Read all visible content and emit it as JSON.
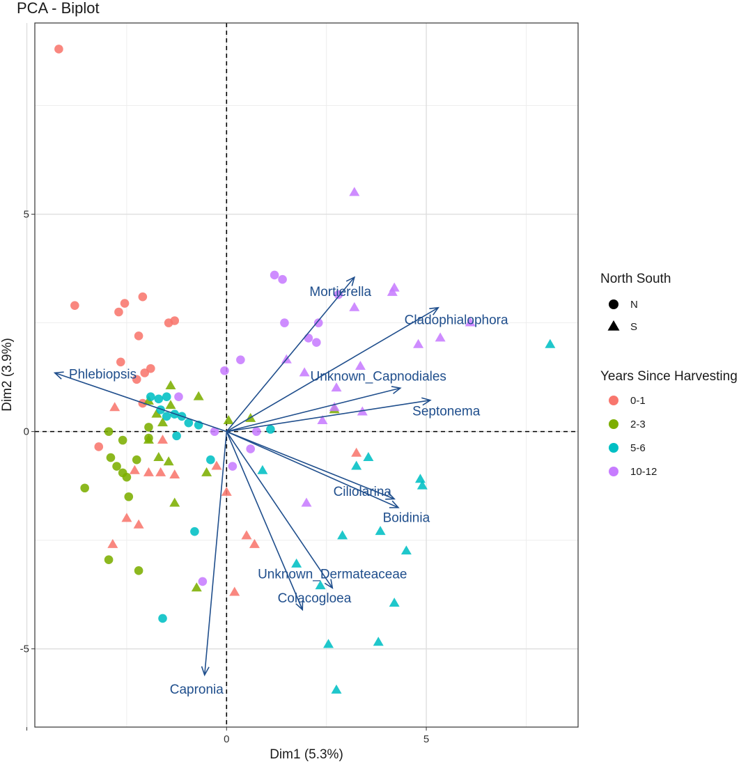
{
  "chart_data": {
    "type": "scatter",
    "title": "PCA - Biplot",
    "xlabel": "Dim1 (5.3%)",
    "ylabel": "Dim2 (3.9%)",
    "xlim": [
      -4.8,
      8.8
    ],
    "ylim": [
      -6.8,
      9.4
    ],
    "xticks": [
      {
        "value": -5,
        "label": ""
      },
      {
        "value": 0,
        "label": "0"
      },
      {
        "value": 5,
        "label": "5"
      }
    ],
    "yticks": [
      {
        "value": -5,
        "label": "-5"
      },
      {
        "value": 0,
        "label": "0"
      },
      {
        "value": 5,
        "label": "5"
      }
    ],
    "minor_x": [
      -2.5,
      2.5,
      7.5
    ],
    "minor_y": [
      -2.5,
      2.5,
      7.5
    ],
    "grid": true,
    "zero_lines": "dashed",
    "arrow_color": "#1F4E8C",
    "arrows": [
      {
        "label": "Mortierella",
        "x": 3.2,
        "y": 3.55,
        "lx": 2.85,
        "ly": 3.2
      },
      {
        "label": "Cladophialophora",
        "x": 5.3,
        "y": 2.85,
        "lx": 5.75,
        "ly": 2.55
      },
      {
        "label": "Phlebiopsis",
        "x": -4.3,
        "y": 1.35,
        "lx": -3.1,
        "ly": 1.3
      },
      {
        "label": "Unknown_Capnodiales",
        "x": 4.35,
        "y": 1.0,
        "lx": 3.8,
        "ly": 1.25
      },
      {
        "label": "Septonema",
        "x": 5.1,
        "y": 0.72,
        "lx": 5.5,
        "ly": 0.45
      },
      {
        "label": "Ciliolarina",
        "x": 4.2,
        "y": -1.55,
        "lx": 3.4,
        "ly": -1.4
      },
      {
        "label": "Boidinia",
        "x": 4.3,
        "y": -1.75,
        "lx": 4.5,
        "ly": -2.0
      },
      {
        "label": "Unknown_Dermateaceae",
        "x": 2.65,
        "y": -3.6,
        "lx": 2.65,
        "ly": -3.3
      },
      {
        "label": "Colacogloea",
        "x": 1.9,
        "y": -4.1,
        "lx": 2.2,
        "ly": -3.85
      },
      {
        "label": "Capronia",
        "x": -0.55,
        "y": -5.6,
        "lx": -0.75,
        "ly": -5.95
      }
    ],
    "legend": {
      "position": "right",
      "shape_title": "North South",
      "shapes": [
        {
          "key": "N",
          "label": "N"
        },
        {
          "key": "S",
          "label": "S"
        }
      ],
      "color_title": "Years Since Harvesting",
      "groups": [
        {
          "key": "g01",
          "label": "0-1",
          "color": "#F8766D"
        },
        {
          "key": "g23",
          "label": "2-3",
          "color": "#7CAE00"
        },
        {
          "key": "g56",
          "label": "5-6",
          "color": "#00BFC4"
        },
        {
          "key": "g1012",
          "label": "10-12",
          "color": "#C77CFF"
        }
      ]
    },
    "points": [
      {
        "x": -4.2,
        "y": 8.8,
        "shape": "N",
        "group": "g01"
      },
      {
        "x": -3.8,
        "y": 2.9,
        "shape": "N",
        "group": "g01"
      },
      {
        "x": -2.7,
        "y": 2.75,
        "shape": "N",
        "group": "g01"
      },
      {
        "x": -2.55,
        "y": 2.95,
        "shape": "N",
        "group": "g01"
      },
      {
        "x": -2.1,
        "y": 3.1,
        "shape": "N",
        "group": "g01"
      },
      {
        "x": -2.2,
        "y": 2.2,
        "shape": "N",
        "group": "g01"
      },
      {
        "x": -1.45,
        "y": 2.5,
        "shape": "N",
        "group": "g01"
      },
      {
        "x": -1.3,
        "y": 2.55,
        "shape": "N",
        "group": "g01"
      },
      {
        "x": -2.65,
        "y": 1.6,
        "shape": "N",
        "group": "g01"
      },
      {
        "x": -2.25,
        "y": 1.2,
        "shape": "N",
        "group": "g01"
      },
      {
        "x": -2.05,
        "y": 1.35,
        "shape": "N",
        "group": "g01"
      },
      {
        "x": -1.9,
        "y": 1.45,
        "shape": "N",
        "group": "g01"
      },
      {
        "x": -2.1,
        "y": 0.65,
        "shape": "N",
        "group": "g01"
      },
      {
        "x": -3.2,
        "y": -0.35,
        "shape": "N",
        "group": "g01"
      },
      {
        "x": -2.8,
        "y": 0.55,
        "shape": "S",
        "group": "g01"
      },
      {
        "x": -1.6,
        "y": -0.2,
        "shape": "S",
        "group": "g01"
      },
      {
        "x": -2.3,
        "y": -0.9,
        "shape": "S",
        "group": "g01"
      },
      {
        "x": -1.95,
        "y": -0.95,
        "shape": "S",
        "group": "g01"
      },
      {
        "x": -1.65,
        "y": -0.95,
        "shape": "S",
        "group": "g01"
      },
      {
        "x": -1.3,
        "y": -1.0,
        "shape": "S",
        "group": "g01"
      },
      {
        "x": -0.25,
        "y": -0.8,
        "shape": "S",
        "group": "g01"
      },
      {
        "x": 0.0,
        "y": -1.4,
        "shape": "S",
        "group": "g01"
      },
      {
        "x": -2.5,
        "y": -2.0,
        "shape": "S",
        "group": "g01"
      },
      {
        "x": -2.2,
        "y": -2.15,
        "shape": "S",
        "group": "g01"
      },
      {
        "x": -2.85,
        "y": -2.6,
        "shape": "S",
        "group": "g01"
      },
      {
        "x": 0.5,
        "y": -2.4,
        "shape": "S",
        "group": "g01"
      },
      {
        "x": 0.7,
        "y": -2.6,
        "shape": "S",
        "group": "g01"
      },
      {
        "x": 0.2,
        "y": -3.7,
        "shape": "S",
        "group": "g01"
      },
      {
        "x": 3.25,
        "y": -0.5,
        "shape": "S",
        "group": "g01"
      },
      {
        "x": -2.95,
        "y": 0.0,
        "shape": "N",
        "group": "g23"
      },
      {
        "x": -2.6,
        "y": -0.2,
        "shape": "N",
        "group": "g23"
      },
      {
        "x": -2.9,
        "y": -0.6,
        "shape": "N",
        "group": "g23"
      },
      {
        "x": -2.75,
        "y": -0.8,
        "shape": "N",
        "group": "g23"
      },
      {
        "x": -2.6,
        "y": -0.95,
        "shape": "N",
        "group": "g23"
      },
      {
        "x": -2.5,
        "y": -1.05,
        "shape": "N",
        "group": "g23"
      },
      {
        "x": -2.25,
        "y": -0.65,
        "shape": "N",
        "group": "g23"
      },
      {
        "x": -1.95,
        "y": -0.15,
        "shape": "N",
        "group": "g23"
      },
      {
        "x": -1.95,
        "y": 0.1,
        "shape": "N",
        "group": "g23"
      },
      {
        "x": -3.55,
        "y": -1.3,
        "shape": "N",
        "group": "g23"
      },
      {
        "x": -2.45,
        "y": -1.5,
        "shape": "N",
        "group": "g23"
      },
      {
        "x": -2.95,
        "y": -2.95,
        "shape": "N",
        "group": "g23"
      },
      {
        "x": -2.2,
        "y": -3.2,
        "shape": "N",
        "group": "g23"
      },
      {
        "x": -1.4,
        "y": 1.05,
        "shape": "S",
        "group": "g23"
      },
      {
        "x": -0.7,
        "y": 0.8,
        "shape": "S",
        "group": "g23"
      },
      {
        "x": -1.95,
        "y": 0.7,
        "shape": "S",
        "group": "g23"
      },
      {
        "x": -1.75,
        "y": 0.4,
        "shape": "S",
        "group": "g23"
      },
      {
        "x": -1.6,
        "y": 0.2,
        "shape": "S",
        "group": "g23"
      },
      {
        "x": -1.4,
        "y": 0.6,
        "shape": "S",
        "group": "g23"
      },
      {
        "x": -1.95,
        "y": -0.2,
        "shape": "S",
        "group": "g23"
      },
      {
        "x": -1.7,
        "y": -0.6,
        "shape": "S",
        "group": "g23"
      },
      {
        "x": -1.45,
        "y": -0.7,
        "shape": "S",
        "group": "g23"
      },
      {
        "x": -1.3,
        "y": -1.65,
        "shape": "S",
        "group": "g23"
      },
      {
        "x": -0.5,
        "y": -0.95,
        "shape": "S",
        "group": "g23"
      },
      {
        "x": 0.05,
        "y": 0.25,
        "shape": "S",
        "group": "g23"
      },
      {
        "x": 0.6,
        "y": 0.3,
        "shape": "S",
        "group": "g23"
      },
      {
        "x": 2.7,
        "y": 0.5,
        "shape": "S",
        "group": "g23"
      },
      {
        "x": -0.75,
        "y": -3.6,
        "shape": "S",
        "group": "g23"
      },
      {
        "x": -1.9,
        "y": 0.8,
        "shape": "N",
        "group": "g56"
      },
      {
        "x": -1.7,
        "y": 0.75,
        "shape": "N",
        "group": "g56"
      },
      {
        "x": -1.5,
        "y": 0.8,
        "shape": "N",
        "group": "g56"
      },
      {
        "x": -1.65,
        "y": 0.5,
        "shape": "N",
        "group": "g56"
      },
      {
        "x": -1.5,
        "y": 0.35,
        "shape": "N",
        "group": "g56"
      },
      {
        "x": -1.3,
        "y": 0.4,
        "shape": "N",
        "group": "g56"
      },
      {
        "x": -1.12,
        "y": 0.35,
        "shape": "N",
        "group": "g56"
      },
      {
        "x": -0.95,
        "y": 0.2,
        "shape": "N",
        "group": "g56"
      },
      {
        "x": -0.7,
        "y": 0.15,
        "shape": "N",
        "group": "g56"
      },
      {
        "x": -1.25,
        "y": -0.1,
        "shape": "N",
        "group": "g56"
      },
      {
        "x": -0.4,
        "y": -0.65,
        "shape": "N",
        "group": "g56"
      },
      {
        "x": 1.1,
        "y": 0.05,
        "shape": "N",
        "group": "g56"
      },
      {
        "x": -0.8,
        "y": -2.3,
        "shape": "N",
        "group": "g56"
      },
      {
        "x": -1.6,
        "y": -4.3,
        "shape": "N",
        "group": "g56"
      },
      {
        "x": 0.9,
        "y": -0.9,
        "shape": "S",
        "group": "g56"
      },
      {
        "x": 3.55,
        "y": -0.6,
        "shape": "S",
        "group": "g56"
      },
      {
        "x": 3.25,
        "y": -0.8,
        "shape": "S",
        "group": "g56"
      },
      {
        "x": 4.85,
        "y": -1.1,
        "shape": "S",
        "group": "g56"
      },
      {
        "x": 4.9,
        "y": -1.25,
        "shape": "S",
        "group": "g56"
      },
      {
        "x": 3.85,
        "y": -2.3,
        "shape": "S",
        "group": "g56"
      },
      {
        "x": 2.9,
        "y": -2.4,
        "shape": "S",
        "group": "g56"
      },
      {
        "x": 4.5,
        "y": -2.75,
        "shape": "S",
        "group": "g56"
      },
      {
        "x": 1.75,
        "y": -3.05,
        "shape": "S",
        "group": "g56"
      },
      {
        "x": 2.35,
        "y": -3.55,
        "shape": "S",
        "group": "g56"
      },
      {
        "x": 4.2,
        "y": -3.95,
        "shape": "S",
        "group": "g56"
      },
      {
        "x": 2.55,
        "y": -4.9,
        "shape": "S",
        "group": "g56"
      },
      {
        "x": 3.8,
        "y": -4.85,
        "shape": "S",
        "group": "g56"
      },
      {
        "x": 2.75,
        "y": -5.95,
        "shape": "S",
        "group": "g56"
      },
      {
        "x": 8.1,
        "y": 2.0,
        "shape": "S",
        "group": "g56"
      },
      {
        "x": 1.2,
        "y": 3.6,
        "shape": "N",
        "group": "g1012"
      },
      {
        "x": 1.4,
        "y": 3.5,
        "shape": "N",
        "group": "g1012"
      },
      {
        "x": 2.8,
        "y": 3.15,
        "shape": "N",
        "group": "g1012"
      },
      {
        "x": 1.45,
        "y": 2.5,
        "shape": "N",
        "group": "g1012"
      },
      {
        "x": 2.3,
        "y": 2.5,
        "shape": "N",
        "group": "g1012"
      },
      {
        "x": 2.05,
        "y": 2.15,
        "shape": "N",
        "group": "g1012"
      },
      {
        "x": 2.25,
        "y": 2.05,
        "shape": "N",
        "group": "g1012"
      },
      {
        "x": 0.35,
        "y": 1.65,
        "shape": "N",
        "group": "g1012"
      },
      {
        "x": -0.05,
        "y": 1.4,
        "shape": "N",
        "group": "g1012"
      },
      {
        "x": -1.2,
        "y": 0.8,
        "shape": "N",
        "group": "g1012"
      },
      {
        "x": -0.3,
        "y": 0.0,
        "shape": "N",
        "group": "g1012"
      },
      {
        "x": 0.75,
        "y": 0.0,
        "shape": "N",
        "group": "g1012"
      },
      {
        "x": 0.6,
        "y": -0.4,
        "shape": "N",
        "group": "g1012"
      },
      {
        "x": 0.15,
        "y": -0.8,
        "shape": "N",
        "group": "g1012"
      },
      {
        "x": -0.6,
        "y": -3.45,
        "shape": "N",
        "group": "g1012"
      },
      {
        "x": 3.2,
        "y": 5.5,
        "shape": "S",
        "group": "g1012"
      },
      {
        "x": 4.2,
        "y": 3.3,
        "shape": "S",
        "group": "g1012"
      },
      {
        "x": 4.15,
        "y": 3.2,
        "shape": "S",
        "group": "g1012"
      },
      {
        "x": 3.2,
        "y": 2.85,
        "shape": "S",
        "group": "g1012"
      },
      {
        "x": 6.1,
        "y": 2.5,
        "shape": "S",
        "group": "g1012"
      },
      {
        "x": 5.35,
        "y": 2.15,
        "shape": "S",
        "group": "g1012"
      },
      {
        "x": 4.8,
        "y": 2.0,
        "shape": "S",
        "group": "g1012"
      },
      {
        "x": 1.5,
        "y": 1.65,
        "shape": "S",
        "group": "g1012"
      },
      {
        "x": 3.35,
        "y": 1.5,
        "shape": "S",
        "group": "g1012"
      },
      {
        "x": 1.95,
        "y": 1.35,
        "shape": "S",
        "group": "g1012"
      },
      {
        "x": 2.75,
        "y": 1.0,
        "shape": "S",
        "group": "g1012"
      },
      {
        "x": 2.7,
        "y": 0.55,
        "shape": "S",
        "group": "g1012"
      },
      {
        "x": 3.4,
        "y": 0.45,
        "shape": "S",
        "group": "g1012"
      },
      {
        "x": 2.4,
        "y": 0.25,
        "shape": "S",
        "group": "g1012"
      },
      {
        "x": 2.0,
        "y": -1.65,
        "shape": "S",
        "group": "g1012"
      }
    ]
  }
}
